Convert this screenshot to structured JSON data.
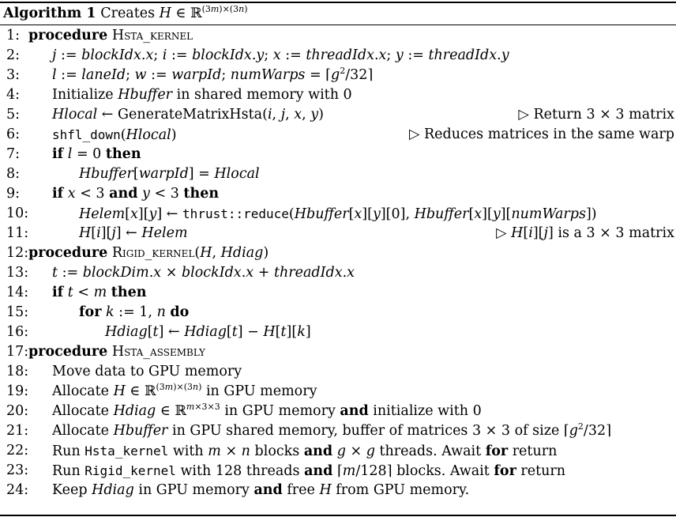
{
  "algorithm": {
    "label": "Algorithm 1",
    "title": "Creates H ∈ ℝ^(3m)×(3n)"
  },
  "lines": [
    {
      "num": "1:",
      "indent": 0,
      "code": "procedure Hsta_kernel",
      "comment": ""
    },
    {
      "num": "2:",
      "indent": 1,
      "code": "j := blockIdx.x; i := blockIdx.y; x := threadIdx.x; y := threadIdx.y",
      "comment": ""
    },
    {
      "num": "3:",
      "indent": 1,
      "code": "l := laneId; w := warpId; numWarps = ⌈g²/32⌉",
      "comment": ""
    },
    {
      "num": "4:",
      "indent": 1,
      "code": "Initialize Hbuffer in shared memory with 0",
      "comment": ""
    },
    {
      "num": "5:",
      "indent": 1,
      "code": "Hlocal ← GenerateMatrixHsta(i, j, x, y)",
      "comment": "▷ Return 3 × 3 matrix"
    },
    {
      "num": "6:",
      "indent": 1,
      "code": "shfl_down(Hlocal)",
      "comment": "▷ Reduces matrices in the same warp"
    },
    {
      "num": "7:",
      "indent": 1,
      "code": "if l = 0 then",
      "comment": ""
    },
    {
      "num": "8:",
      "indent": 2,
      "code": "Hbuffer[warpId] = Hlocal",
      "comment": ""
    },
    {
      "num": "9:",
      "indent": 1,
      "code": "if x < 3 and y < 3 then",
      "comment": ""
    },
    {
      "num": "10:",
      "indent": 2,
      "code": "Helem[x][y] ← thrust::reduce(Hbuffer[x][y][0], Hbuffer[x][y][numWarps])",
      "comment": ""
    },
    {
      "num": "11:",
      "indent": 2,
      "code": "H[i][j] ← Helem",
      "comment": "▷ H[i][j] is a 3 × 3 matrix"
    },
    {
      "num": "12:",
      "indent": 0,
      "code": "procedure Rigid_kernel(H, Hdiag)",
      "comment": ""
    },
    {
      "num": "13:",
      "indent": 1,
      "code": "t := blockDim.x × blockIdx.x + threadIdx.x",
      "comment": ""
    },
    {
      "num": "14:",
      "indent": 1,
      "code": "if t < m then",
      "comment": ""
    },
    {
      "num": "15:",
      "indent": 2,
      "code": "for k := 1, n do",
      "comment": ""
    },
    {
      "num": "16:",
      "indent": 3,
      "code": "Hdiag[t] ← Hdiag[t] − H[t][k]",
      "comment": ""
    },
    {
      "num": "17:",
      "indent": 0,
      "code": "procedure Hsta_assembly",
      "comment": ""
    },
    {
      "num": "18:",
      "indent": 1,
      "code": "Move data to GPU memory",
      "comment": ""
    },
    {
      "num": "19:",
      "indent": 1,
      "code": "Allocate H ∈ ℝ^(3m)×(3n) in GPU memory",
      "comment": ""
    },
    {
      "num": "20:",
      "indent": 1,
      "code": "Allocate Hdiag ∈ ℝ^m×3×3 in GPU memory and initialize with 0",
      "comment": ""
    },
    {
      "num": "21:",
      "indent": 1,
      "code": "Allocate Hbuffer in GPU shared memory, buffer of matrices 3 × 3 of size ⌈g²/32⌉",
      "comment": ""
    },
    {
      "num": "22:",
      "indent": 1,
      "code": "Run Hsta_kernel with m × n blocks and g × g threads. Await for return",
      "comment": ""
    },
    {
      "num": "23:",
      "indent": 1,
      "code": "Run Rigid_kernel with 128 threads and ⌈m/128⌉ blocks. Await for return",
      "comment": ""
    },
    {
      "num": "24:",
      "indent": 1,
      "code": "Keep Hdiag in GPU memory and free H from GPU memory.",
      "comment": ""
    }
  ]
}
